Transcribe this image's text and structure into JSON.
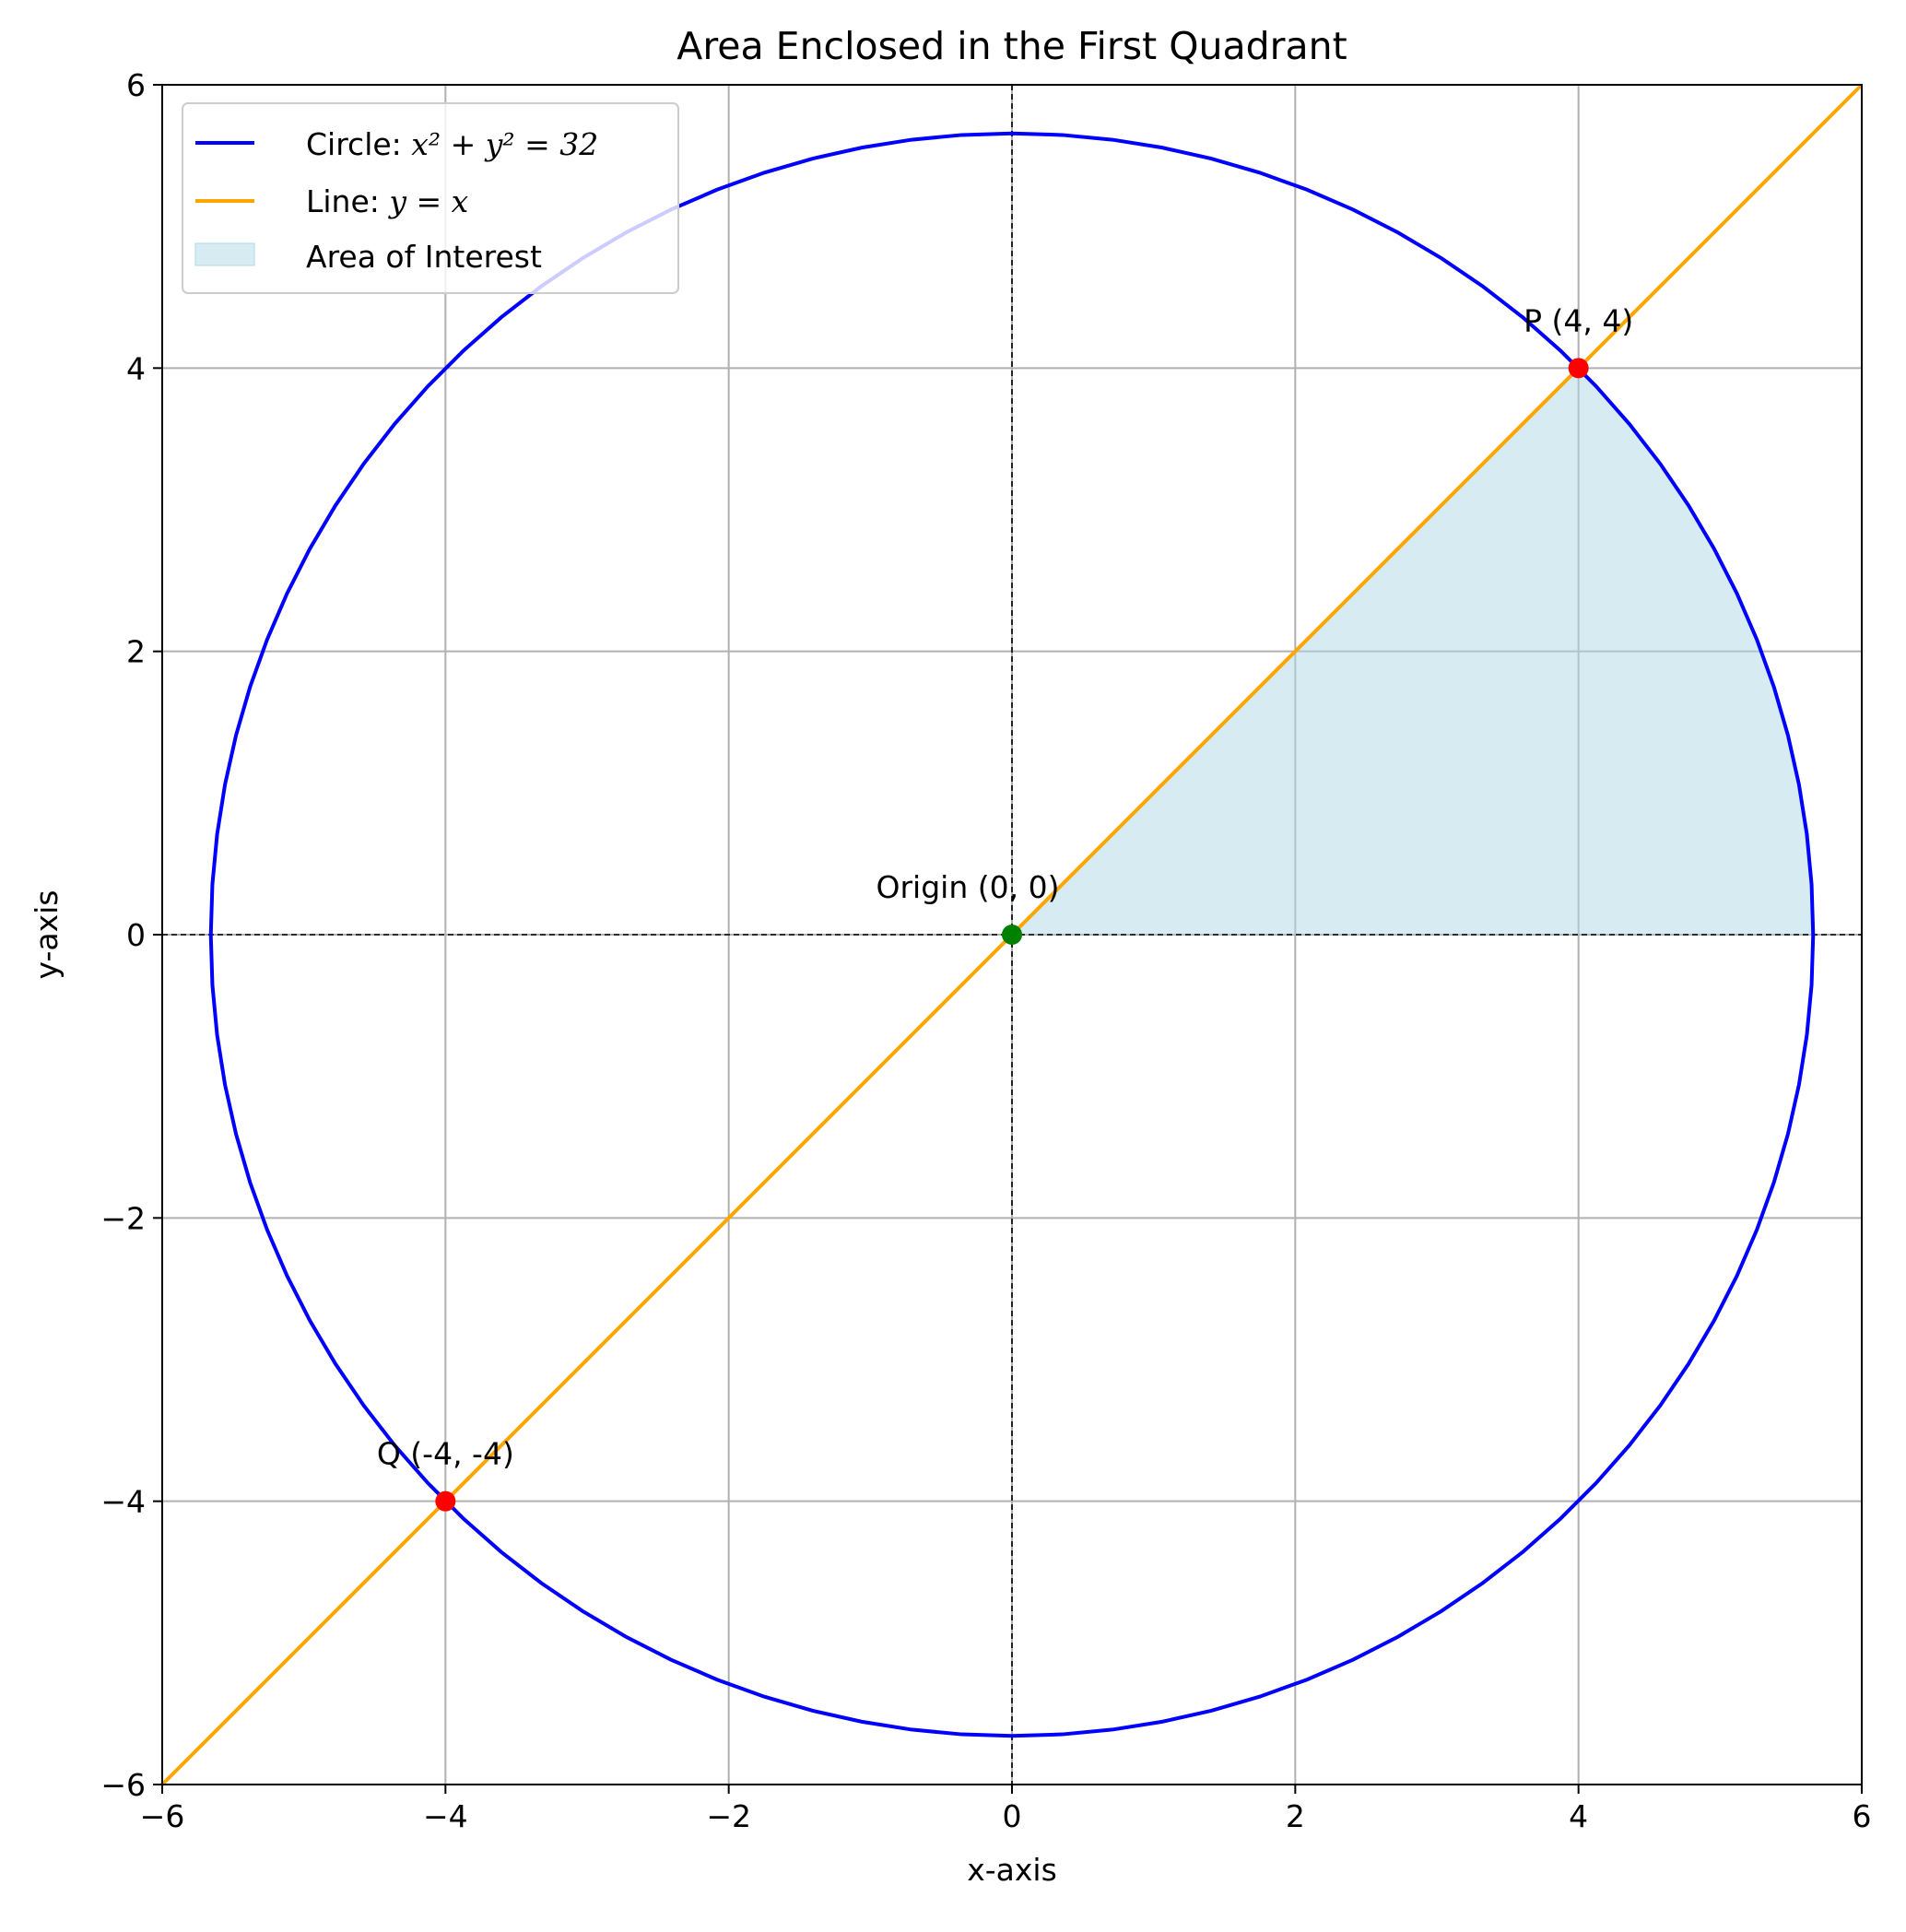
{
  "chart_data": {
    "type": "line",
    "title": "Area Enclosed in the First Quadrant",
    "xlabel": "x-axis",
    "ylabel": "y-axis",
    "xlim": [
      -6,
      6
    ],
    "ylim": [
      -6,
      6
    ],
    "x_ticks": [
      -6,
      -4,
      -2,
      0,
      2,
      4,
      6
    ],
    "y_ticks": [
      -6,
      -4,
      -2,
      0,
      2,
      4,
      6
    ],
    "x_tick_labels": [
      "−6",
      "−4",
      "−2",
      "0",
      "2",
      "4",
      "6"
    ],
    "y_tick_labels": [
      "−6",
      "−4",
      "−2",
      "0",
      "2",
      "4",
      "6"
    ],
    "grid": true,
    "legend_position": "top-left",
    "series": [
      {
        "name": "Circle: x² + y² = 32",
        "legend_prefix": "Circle: ",
        "legend_math": "x² + y² = 32",
        "kind": "circle",
        "center": [
          0,
          0
        ],
        "radius_squared": 32,
        "color": "#0000ff"
      },
      {
        "name": "Line: y = x",
        "legend_prefix": "Line: ",
        "legend_math": "y = x",
        "kind": "line",
        "x": [
          -6,
          6
        ],
        "y": [
          -6,
          6
        ],
        "color": "#ffa500"
      }
    ],
    "shaded_region": {
      "name": "Area of Interest",
      "color": "#add8e6",
      "description_bounds": {
        "x_from": 0,
        "x_to": 5.657,
        "lower": "y = 0",
        "upper": "min(x, sqrt(32 - x^2))"
      }
    },
    "reference_lines": [
      {
        "orientation": "horizontal",
        "value": 0,
        "style": "dashed",
        "color": "#000000"
      },
      {
        "orientation": "vertical",
        "value": 0,
        "style": "dashed",
        "color": "#000000"
      }
    ],
    "points": [
      {
        "label": "P (4, 4)",
        "x": 4,
        "y": 4,
        "color": "#ff0000"
      },
      {
        "label": "Q (-4, -4)",
        "x": -4,
        "y": -4,
        "color": "#ff0000"
      },
      {
        "label": "Origin (0, 0)",
        "x": 0,
        "y": 0,
        "color": "#008000"
      }
    ]
  }
}
